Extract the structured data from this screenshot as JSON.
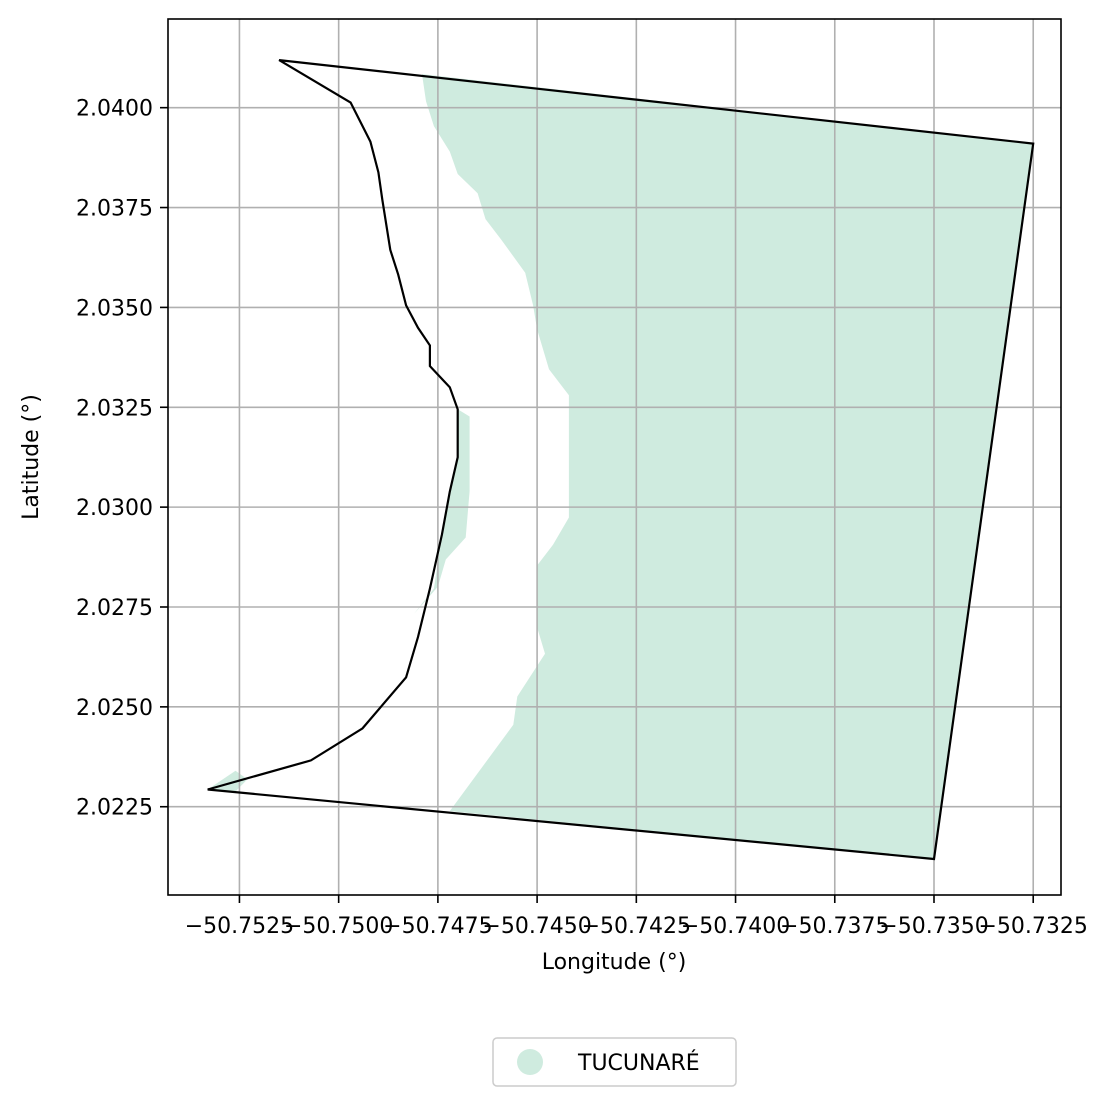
{
  "chart_data": {
    "type": "map",
    "xlabel": "Longitude (°)",
    "ylabel": "Latitude (°)",
    "xlim": [
      -50.7543,
      -50.7318
    ],
    "ylim": [
      2.02029,
      2.04222
    ],
    "grid": true,
    "x_ticks": [
      -50.7525,
      -50.75,
      -50.7475,
      -50.745,
      -50.7425,
      -50.74,
      -50.7375,
      -50.735,
      -50.7325
    ],
    "x_tick_labels": [
      "−50.7525",
      "−50.7500",
      "−50.7475",
      "−50.7450",
      "−50.7425",
      "−50.7400",
      "−50.7375",
      "−50.7350",
      "−50.7325"
    ],
    "y_ticks": [
      2.0225,
      2.025,
      2.0275,
      2.03,
      2.0325,
      2.035,
      2.0375,
      2.04
    ],
    "y_tick_labels": [
      "2.0225",
      "2.0250",
      "2.0275",
      "2.0300",
      "2.0325",
      "2.0350",
      "2.0375",
      "2.0400"
    ],
    "boundary": {
      "stroke": "#000000",
      "coords": [
        [
          -50.7515,
          2.04119
        ],
        [
          -50.7325,
          2.0391
        ],
        [
          -50.735,
          2.02119
        ],
        [
          -50.7533,
          2.02293
        ],
        [
          -50.7507,
          2.02366
        ],
        [
          -50.7494,
          2.02446
        ],
        [
          -50.7483,
          2.02574
        ],
        [
          -50.748,
          2.02675
        ],
        [
          -50.7477,
          2.02796
        ],
        [
          -50.7474,
          2.02931
        ],
        [
          -50.7472,
          2.03039
        ],
        [
          -50.747,
          2.03125
        ],
        [
          -50.747,
          2.03245
        ],
        [
          -50.7472,
          2.033
        ],
        [
          -50.7477,
          2.03353
        ],
        [
          -50.7477,
          2.03405
        ],
        [
          -50.748,
          2.03449
        ],
        [
          -50.7483,
          2.03505
        ],
        [
          -50.7485,
          2.03582
        ],
        [
          -50.7487,
          2.03644
        ],
        [
          -50.7489,
          2.0377
        ],
        [
          -50.749,
          2.03838
        ],
        [
          -50.7492,
          2.03915
        ],
        [
          -50.7497,
          2.04013
        ],
        [
          -50.7515,
          2.04119
        ]
      ]
    },
    "classes": [
      {
        "name": "TUCUNARÉ",
        "color": "#cfebdf",
        "polygons": [
          [
            [
              -50.7479,
              2.04084
            ],
            [
              -50.7325,
              2.0391
            ],
            [
              -50.735,
              2.02119
            ],
            [
              -50.7472,
              2.02239
            ],
            [
              -50.7456,
              2.02455
            ],
            [
              -50.7455,
              2.02526
            ],
            [
              -50.7448,
              2.02633
            ],
            [
              -50.745,
              2.02699
            ],
            [
              -50.745,
              2.02854
            ],
            [
              -50.7446,
              2.02906
            ],
            [
              -50.7442,
              2.02974
            ],
            [
              -50.7442,
              2.03075
            ],
            [
              -50.7442,
              2.03187
            ],
            [
              -50.7442,
              2.0328
            ],
            [
              -50.7447,
              2.03345
            ],
            [
              -50.745,
              2.03445
            ],
            [
              -50.7451,
              2.03505
            ],
            [
              -50.7453,
              2.03587
            ],
            [
              -50.7459,
              2.03669
            ],
            [
              -50.7463,
              2.03721
            ],
            [
              -50.7465,
              2.03786
            ],
            [
              -50.747,
              2.03834
            ],
            [
              -50.7472,
              2.0389
            ],
            [
              -50.7476,
              2.03954
            ],
            [
              -50.7478,
              2.04016
            ],
            [
              -50.7479,
              2.04084
            ]
          ],
          [
            [
              -50.747,
              2.03245
            ],
            [
              -50.7467,
              2.03227
            ],
            [
              -50.7467,
              2.03163
            ],
            [
              -50.7467,
              2.0304
            ],
            [
              -50.7468,
              2.02924
            ],
            [
              -50.7473,
              2.02869
            ],
            [
              -50.7475,
              2.02801
            ],
            [
              -50.7481,
              2.02733
            ],
            [
              -50.7476,
              2.02796
            ],
            [
              -50.7474,
              2.02931
            ],
            [
              -50.7472,
              2.03039
            ],
            [
              -50.747,
              2.03125
            ],
            [
              -50.747,
              2.03245
            ]
          ],
          [
            [
              -50.7533,
              2.02293
            ],
            [
              -50.7526,
              2.02288
            ],
            [
              -50.7523,
              2.02319
            ],
            [
              -50.7526,
              2.0234
            ],
            [
              -50.7533,
              2.02293
            ]
          ]
        ]
      }
    ],
    "legend": {
      "placement": "bottom-center",
      "entries": [
        "TUCUNARÉ"
      ]
    }
  }
}
